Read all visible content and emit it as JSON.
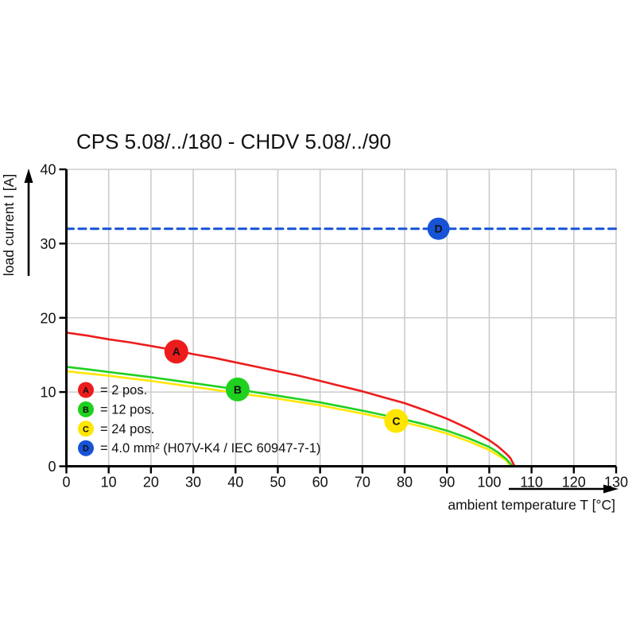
{
  "chart_data": {
    "type": "line",
    "title": "CPS 5.08/../180 - CHDV 5.08/../90",
    "xlabel": "ambient temperature T [°C]",
    "ylabel": "load current I [A]",
    "xlim": [
      0,
      130
    ],
    "ylim": [
      0,
      40
    ],
    "x_ticks": [
      0,
      10,
      20,
      30,
      40,
      50,
      60,
      70,
      80,
      90,
      100,
      110,
      120,
      130
    ],
    "y_ticks": [
      0,
      10,
      20,
      30,
      40
    ],
    "grid": true,
    "legend_position": "lower-left-inside",
    "colors": {
      "series_a": "#ed1c1c",
      "series_b": "#1fd11f",
      "series_c": "#ffe600",
      "series_d": "#1653d6",
      "grid": "#cccccc",
      "axis": "#000000",
      "marker_letter": "#ffffff"
    },
    "series": [
      {
        "name": "A",
        "label": "2 pos.",
        "color": "#ed1c1c",
        "style": "solid",
        "points": [
          [
            0,
            18
          ],
          [
            5,
            17.6
          ],
          [
            10,
            17.1
          ],
          [
            15,
            16.7
          ],
          [
            20,
            16.2
          ],
          [
            25,
            15.7
          ],
          [
            30,
            15.1
          ],
          [
            35,
            14.6
          ],
          [
            40,
            14.0
          ],
          [
            45,
            13.4
          ],
          [
            50,
            12.8
          ],
          [
            55,
            12.2
          ],
          [
            60,
            11.5
          ],
          [
            65,
            10.8
          ],
          [
            70,
            10.1
          ],
          [
            75,
            9.3
          ],
          [
            80,
            8.5
          ],
          [
            85,
            7.5
          ],
          [
            90,
            6.4
          ],
          [
            95,
            5.1
          ],
          [
            100,
            3.5
          ],
          [
            102,
            2.7
          ],
          [
            104,
            1.7
          ],
          [
            105,
            1.1
          ],
          [
            106,
            0
          ]
        ]
      },
      {
        "name": "B",
        "label": "12 pos.",
        "color": "#1fd11f",
        "style": "solid",
        "points": [
          [
            0,
            13.4
          ],
          [
            5,
            13.05
          ],
          [
            10,
            12.7
          ],
          [
            15,
            12.35
          ],
          [
            20,
            12.0
          ],
          [
            25,
            11.6
          ],
          [
            30,
            11.2
          ],
          [
            35,
            10.8
          ],
          [
            40,
            10.4
          ],
          [
            45,
            9.95
          ],
          [
            50,
            9.5
          ],
          [
            55,
            9.05
          ],
          [
            60,
            8.6
          ],
          [
            65,
            8.05
          ],
          [
            70,
            7.5
          ],
          [
            75,
            6.9
          ],
          [
            80,
            6.3
          ],
          [
            85,
            5.6
          ],
          [
            90,
            4.8
          ],
          [
            95,
            3.8
          ],
          [
            100,
            2.6
          ],
          [
            102,
            1.9
          ],
          [
            104,
            1.0
          ],
          [
            105.5,
            0
          ]
        ]
      },
      {
        "name": "C",
        "label": "24 pos.",
        "color": "#ffe600",
        "style": "solid",
        "points": [
          [
            0,
            12.8
          ],
          [
            5,
            12.5
          ],
          [
            10,
            12.2
          ],
          [
            15,
            11.85
          ],
          [
            20,
            11.5
          ],
          [
            25,
            11.1
          ],
          [
            30,
            10.7
          ],
          [
            35,
            10.3
          ],
          [
            40,
            9.9
          ],
          [
            45,
            9.5
          ],
          [
            50,
            9.1
          ],
          [
            55,
            8.65
          ],
          [
            60,
            8.2
          ],
          [
            65,
            7.65
          ],
          [
            70,
            7.1
          ],
          [
            75,
            6.5
          ],
          [
            80,
            5.9
          ],
          [
            85,
            5.2
          ],
          [
            90,
            4.4
          ],
          [
            95,
            3.4
          ],
          [
            100,
            2.2
          ],
          [
            102,
            1.5
          ],
          [
            104,
            0.8
          ],
          [
            105,
            0
          ]
        ]
      },
      {
        "name": "D",
        "label": "4.0 mm² (H07V-K4 / IEC 60947-7-1)",
        "color": "#1653d6",
        "style": "dashed",
        "points": [
          [
            0,
            32
          ],
          [
            130,
            32
          ]
        ]
      }
    ],
    "markers": [
      {
        "letter": "A",
        "x": 26,
        "y": 15.45,
        "color": "#ed1c1c",
        "radius": 15
      },
      {
        "letter": "B",
        "x": 40.5,
        "y": 10.35,
        "color": "#1fd11f",
        "radius": 15
      },
      {
        "letter": "C",
        "x": 78,
        "y": 6.1,
        "color": "#ffe600",
        "radius": 15
      },
      {
        "letter": "D",
        "x": 88,
        "y": 32,
        "color": "#1653d6",
        "radius": 14
      }
    ],
    "legend": [
      {
        "letter": "A",
        "color": "#ed1c1c",
        "label": "= 2 pos."
      },
      {
        "letter": "B",
        "color": "#1fd11f",
        "label": "= 12 pos."
      },
      {
        "letter": "C",
        "color": "#ffe600",
        "label": "= 24 pos."
      },
      {
        "letter": "D",
        "color": "#1653d6",
        "label": "= 4.0 mm² (H07V-K4 / IEC 60947-7-1)"
      }
    ]
  }
}
